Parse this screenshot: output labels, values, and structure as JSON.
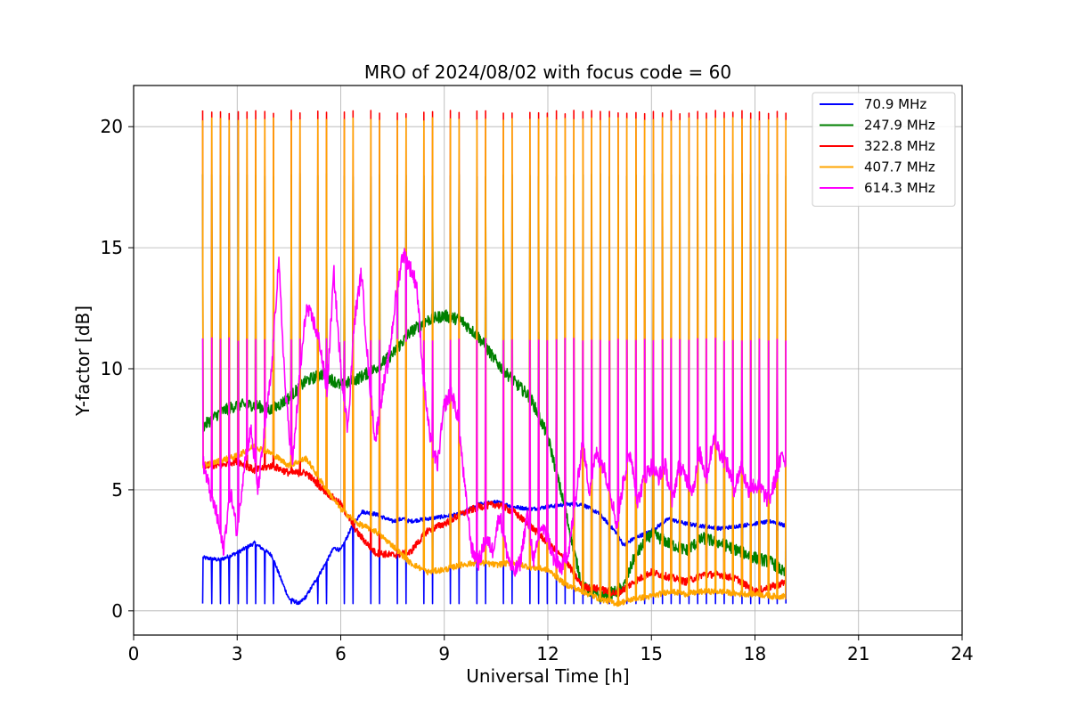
{
  "chart_data": {
    "type": "line",
    "title": "MRO of 2024/08/02 with focus code = 60",
    "xlabel": "Universal Time [h]",
    "ylabel": "Y-factor [dB]",
    "xlim": [
      0,
      24
    ],
    "ylim": [
      -1.0,
      21.7
    ],
    "xticks": [
      0,
      3,
      6,
      9,
      12,
      15,
      18,
      21,
      24
    ],
    "xtick_labels": [
      "0",
      "3",
      "6",
      "9",
      "12",
      "15",
      "18",
      "21",
      "24"
    ],
    "yticks": [
      0,
      5,
      10,
      15,
      20
    ],
    "ytick_labels": [
      "0",
      "5",
      "10",
      "15",
      "20"
    ],
    "grid": true,
    "legend_position": "top-right",
    "calibration_spikes": {
      "start": 2.0,
      "end": 18.9,
      "period": 0.256
    },
    "series": [
      {
        "name": " 70.9 MHz",
        "color": "#0000ff",
        "spike_low": 0.3,
        "x": [
          2.0,
          2.5,
          3.0,
          3.5,
          4.0,
          4.3,
          4.5,
          4.8,
          5.0,
          5.5,
          5.8,
          6.0,
          6.3,
          6.6,
          7.0,
          7.5,
          7.8,
          8.0,
          8.5,
          9.0,
          9.5,
          10.0,
          10.5,
          11.0,
          11.5,
          12.0,
          12.5,
          13.0,
          13.5,
          14.0,
          14.2,
          14.5,
          15.0,
          15.5,
          16.0,
          16.5,
          17.0,
          17.5,
          18.0,
          18.5,
          18.9
        ],
        "y": [
          2.2,
          2.1,
          2.4,
          2.8,
          2.3,
          1.2,
          0.5,
          0.3,
          0.6,
          1.8,
          2.6,
          2.5,
          3.4,
          4.1,
          4.0,
          3.7,
          3.8,
          3.7,
          3.8,
          3.9,
          4.0,
          4.4,
          4.5,
          4.3,
          4.2,
          4.3,
          4.4,
          4.4,
          4.0,
          3.2,
          2.7,
          3.0,
          3.3,
          3.8,
          3.6,
          3.5,
          3.4,
          3.5,
          3.6,
          3.7,
          3.5
        ]
      },
      {
        "name": " 247.9 MHz",
        "color": "#008000",
        "spike_high": 18.0,
        "x": [
          2.0,
          2.5,
          3.0,
          3.5,
          4.0,
          4.5,
          5.0,
          5.5,
          6.0,
          6.5,
          7.0,
          7.5,
          8.0,
          8.5,
          9.0,
          9.5,
          10.0,
          10.5,
          11.0,
          11.5,
          12.0,
          12.5,
          12.8,
          13.0,
          13.5,
          14.0,
          14.2,
          14.5,
          15.0,
          15.5,
          16.0,
          16.5,
          17.0,
          17.5,
          18.0,
          18.5,
          18.9
        ],
        "y": [
          7.6,
          8.2,
          8.5,
          8.5,
          8.3,
          8.8,
          9.5,
          9.8,
          9.3,
          9.6,
          10.0,
          10.6,
          11.5,
          12.0,
          12.2,
          12.0,
          11.3,
          10.3,
          9.5,
          8.8,
          7.2,
          4.2,
          2.2,
          1.0,
          0.6,
          0.8,
          1.0,
          2.2,
          3.2,
          2.8,
          2.5,
          3.0,
          2.8,
          2.5,
          2.2,
          2.0,
          1.5
        ]
      },
      {
        "name": " 322.8 MHz",
        "color": "#ff0000",
        "spike_high": 20.6,
        "x": [
          2.0,
          2.5,
          3.0,
          3.5,
          4.0,
          4.5,
          5.0,
          5.5,
          6.0,
          6.5,
          7.0,
          7.5,
          8.0,
          8.5,
          9.0,
          9.5,
          10.0,
          10.5,
          11.0,
          11.5,
          12.0,
          12.5,
          13.0,
          13.5,
          14.0,
          14.5,
          15.0,
          15.5,
          16.0,
          16.5,
          17.0,
          17.5,
          18.0,
          18.5,
          18.9
        ],
        "y": [
          6.0,
          6.0,
          6.2,
          5.8,
          6.0,
          5.7,
          5.7,
          5.0,
          4.4,
          3.2,
          2.4,
          2.3,
          2.4,
          3.3,
          3.6,
          4.0,
          4.3,
          4.4,
          4.1,
          3.5,
          2.8,
          2.1,
          1.0,
          0.9,
          0.7,
          1.2,
          1.6,
          1.4,
          1.2,
          1.5,
          1.5,
          1.3,
          0.8,
          1.0,
          1.2
        ]
      },
      {
        "name": " 407.7 MHz",
        "color": "#ffa500",
        "spike_high": 20.3,
        "x": [
          2.0,
          2.5,
          3.0,
          3.5,
          4.0,
          4.5,
          5.0,
          5.5,
          6.0,
          6.5,
          7.0,
          7.5,
          8.0,
          8.5,
          9.0,
          9.5,
          10.0,
          10.5,
          11.0,
          11.5,
          12.0,
          12.5,
          13.0,
          13.5,
          14.0,
          14.5,
          15.0,
          15.5,
          16.0,
          16.5,
          17.0,
          17.5,
          18.0,
          18.5,
          18.9
        ],
        "y": [
          6.0,
          6.2,
          6.4,
          6.8,
          6.5,
          6.0,
          6.3,
          5.2,
          4.2,
          3.6,
          3.3,
          2.7,
          2.0,
          1.6,
          1.7,
          1.9,
          2.0,
          1.9,
          2.0,
          1.8,
          1.7,
          1.1,
          0.8,
          0.5,
          0.3,
          0.5,
          0.6,
          0.8,
          0.7,
          0.8,
          0.8,
          0.7,
          0.7,
          0.6,
          0.6
        ]
      },
      {
        "name": " 614.3 MHz",
        "color": "#ff00ff",
        "spike_high": 11.2,
        "x": [
          2.0,
          2.2,
          2.4,
          2.6,
          2.8,
          3.0,
          3.2,
          3.4,
          3.6,
          3.8,
          4.0,
          4.2,
          4.4,
          4.6,
          4.8,
          5.0,
          5.2,
          5.4,
          5.6,
          5.8,
          6.0,
          6.2,
          6.4,
          6.6,
          6.8,
          7.0,
          7.2,
          7.4,
          7.6,
          7.8,
          8.0,
          8.2,
          8.4,
          8.6,
          8.8,
          9.0,
          9.2,
          9.4,
          9.6,
          9.8,
          10.0,
          10.2,
          10.4,
          10.6,
          10.8,
          11.0,
          11.2,
          11.4,
          11.6,
          11.8,
          12.0,
          12.2,
          12.4,
          12.6,
          12.8,
          13.0,
          13.2,
          13.4,
          13.6,
          13.8,
          14.0,
          14.2,
          14.4,
          14.6,
          14.8,
          15.0,
          15.2,
          15.4,
          15.6,
          15.8,
          16.0,
          16.2,
          16.4,
          16.6,
          16.8,
          17.0,
          17.2,
          17.4,
          17.6,
          17.8,
          18.0,
          18.2,
          18.4,
          18.6,
          18.8,
          18.9
        ],
        "y": [
          6.2,
          5.0,
          4.0,
          2.5,
          5.0,
          3.2,
          6.0,
          7.5,
          5.0,
          7.5,
          10.0,
          14.5,
          9.0,
          6.0,
          9.5,
          12.5,
          12.0,
          11.0,
          9.0,
          14.0,
          10.0,
          7.5,
          12.0,
          14.0,
          10.0,
          7.0,
          9.0,
          10.5,
          13.0,
          14.8,
          14.2,
          13.5,
          9.5,
          7.0,
          6.0,
          8.5,
          9.0,
          8.0,
          5.0,
          2.5,
          2.0,
          3.0,
          2.5,
          4.0,
          2.5,
          1.5,
          2.0,
          4.0,
          2.0,
          3.5,
          3.0,
          2.0,
          1.8,
          2.5,
          4.5,
          7.0,
          5.0,
          6.5,
          6.0,
          5.0,
          3.5,
          5.5,
          6.5,
          4.5,
          5.5,
          6.0,
          5.5,
          6.0,
          4.5,
          6.0,
          5.5,
          5.0,
          6.5,
          5.5,
          7.2,
          6.5,
          6.0,
          5.0,
          6.0,
          5.0,
          5.2,
          5.0,
          4.5,
          5.5,
          6.5,
          6.0
        ]
      }
    ]
  }
}
